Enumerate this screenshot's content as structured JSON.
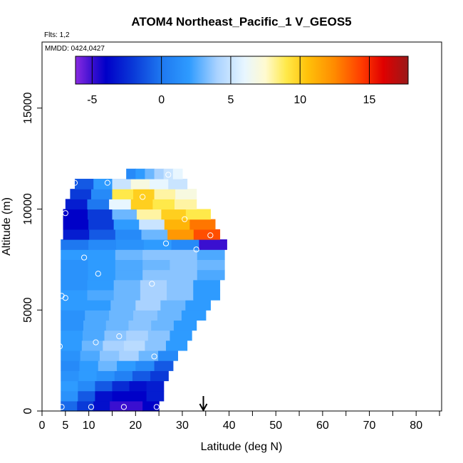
{
  "chart_data": {
    "type": "heatmap",
    "title": "ATOM4 Northeast_Pacific_1 V_GEOS5",
    "subtitle_flights": "Flts: 1,2",
    "subtitle_dates": "MMDD: 0424,0427",
    "xlabel": "Latitude (deg N)",
    "ylabel": "Altitude (m)",
    "xlim": [
      0,
      85
    ],
    "ylim": [
      0,
      17500
    ],
    "x_ticks": [
      0,
      5,
      10,
      20,
      30,
      40,
      50,
      60,
      70,
      80
    ],
    "x_tick_labels": [
      "0",
      "5",
      "10",
      "20",
      "30",
      "40",
      "50",
      "60",
      "70",
      "80"
    ],
    "y_ticks": [
      0,
      5000,
      10000,
      15000
    ],
    "y_tick_labels": [
      "0",
      "5000",
      "10000",
      "15000"
    ],
    "colorbar": {
      "range": [
        -6.2,
        17.8
      ],
      "ticks": [
        -5,
        0,
        5,
        10,
        15
      ],
      "tick_labels": [
        "-5",
        "0",
        "5",
        "10",
        "15"
      ],
      "stops": [
        {
          "v": -6.2,
          "c": "#8a2be2"
        },
        {
          "v": -5.0,
          "c": "#3a0fd0"
        },
        {
          "v": -4.0,
          "c": "#0000c8"
        },
        {
          "v": -2.0,
          "c": "#0a3ad8"
        },
        {
          "v": 0.0,
          "c": "#1e78f0"
        },
        {
          "v": 2.0,
          "c": "#2e9bff"
        },
        {
          "v": 4.0,
          "c": "#a9d2ff"
        },
        {
          "v": 6.0,
          "c": "#e8f6ff"
        },
        {
          "v": 7.5,
          "c": "#fffad0"
        },
        {
          "v": 9.0,
          "c": "#ffe94a"
        },
        {
          "v": 10.5,
          "c": "#ffc20a"
        },
        {
          "v": 12.5,
          "c": "#ff8a00"
        },
        {
          "v": 14.5,
          "c": "#ff3a00"
        },
        {
          "v": 16.0,
          "c": "#e00000"
        },
        {
          "v": 17.8,
          "c": "#9a1a1a"
        }
      ]
    },
    "marker": {
      "latitude": 34.5,
      "label": "arrow"
    },
    "cell_height_m": 500,
    "rows": [
      {
        "alt": 250,
        "x0": 4,
        "x1": 25,
        "v": [
          -0.5,
          -2,
          -3.5,
          -5,
          -5,
          -4
        ]
      },
      {
        "alt": 750,
        "x0": 4,
        "x1": 26,
        "v": [
          1.5,
          -1,
          -3.5,
          -4,
          -4,
          -3
        ]
      },
      {
        "alt": 1250,
        "x0": 4,
        "x1": 26,
        "v": [
          2,
          1,
          -1,
          -2.5,
          -3.5,
          -3
        ]
      },
      {
        "alt": 1750,
        "x0": 4,
        "x1": 27,
        "v": [
          1.5,
          2,
          1.5,
          0.5,
          -1,
          -2
        ]
      },
      {
        "alt": 2250,
        "x0": 4,
        "x1": 28,
        "v": [
          1,
          2,
          3,
          2,
          1,
          -1
        ]
      },
      {
        "alt": 2750,
        "x0": 4,
        "x1": 29,
        "v": [
          1.5,
          2.5,
          3.5,
          4,
          3,
          1
        ]
      },
      {
        "alt": 3250,
        "x0": 4,
        "x1": 31,
        "v": [
          2,
          3,
          4,
          4.5,
          3.5,
          2
        ]
      },
      {
        "alt": 3750,
        "x0": 4,
        "x1": 32,
        "v": [
          2,
          2.5,
          3.5,
          4,
          3.5,
          2
        ]
      },
      {
        "alt": 4250,
        "x0": 4,
        "x1": 33,
        "v": [
          1.5,
          2.5,
          3,
          3.5,
          3,
          2
        ]
      },
      {
        "alt": 4750,
        "x0": 4,
        "x1": 35,
        "v": [
          1.5,
          2.5,
          3,
          3.5,
          3,
          2
        ]
      },
      {
        "alt": 5250,
        "x0": 4,
        "x1": 36,
        "v": [
          2,
          2,
          3,
          4,
          3,
          2
        ]
      },
      {
        "alt": 5750,
        "x0": 4,
        "x1": 38,
        "v": [
          2,
          2.5,
          3,
          4,
          3.5,
          2
        ]
      },
      {
        "alt": 6250,
        "x0": 4,
        "x1": 38,
        "v": [
          1.5,
          2,
          3,
          4,
          3.5,
          2
        ]
      },
      {
        "alt": 6750,
        "x0": 4,
        "x1": 39,
        "v": [
          1.5,
          2,
          2.5,
          3.5,
          3.5,
          2.5
        ]
      },
      {
        "alt": 7250,
        "x0": 4,
        "x1": 39,
        "v": [
          1.5,
          2,
          2.5,
          3,
          3.5,
          3
        ]
      },
      {
        "alt": 7750,
        "x0": 4,
        "x1": 39,
        "v": [
          2,
          2,
          3,
          3.5,
          3.5,
          2.5
        ]
      },
      {
        "alt": 8250,
        "x0": 4,
        "x1": 39.5,
        "v": [
          0,
          1,
          1.5,
          2,
          1,
          -5
        ]
      },
      {
        "alt": 8750,
        "x0": 4.5,
        "x1": 38,
        "v": [
          -3,
          -1,
          1,
          3,
          12,
          14
        ]
      },
      {
        "alt": 9250,
        "x0": 4.5,
        "x1": 37,
        "v": [
          -4,
          -2,
          2,
          5,
          11,
          13
        ]
      },
      {
        "alt": 9750,
        "x0": 4.5,
        "x1": 36,
        "v": [
          -4,
          -2,
          3,
          8,
          10,
          9
        ]
      },
      {
        "alt": 10250,
        "x0": 5,
        "x1": 33,
        "v": [
          -3,
          0,
          6,
          10,
          9,
          8
        ]
      },
      {
        "alt": 10750,
        "x0": 6,
        "x1": 33,
        "v": [
          -2,
          1,
          9,
          10,
          8,
          7
        ]
      },
      {
        "alt": 11250,
        "x0": 7,
        "x1": 31,
        "v": [
          -1,
          2,
          5,
          7,
          6,
          5
        ]
      },
      {
        "alt": 11750,
        "x0": 18,
        "x1": 30,
        "v": [
          1,
          2,
          3,
          4,
          5,
          6
        ]
      }
    ],
    "points": [
      [
        4.2,
        200
      ],
      [
        10.5,
        200
      ],
      [
        17.5,
        200
      ],
      [
        24.5,
        200
      ],
      [
        3.8,
        3200
      ],
      [
        11.5,
        3400
      ],
      [
        16.5,
        3700
      ],
      [
        24,
        2700
      ],
      [
        4.2,
        5700
      ],
      [
        5,
        5600
      ],
      [
        12,
        6800
      ],
      [
        23.5,
        6300
      ],
      [
        39,
        5900
      ],
      [
        9,
        7600
      ],
      [
        26.5,
        8300
      ],
      [
        33,
        8000
      ],
      [
        5,
        9800
      ],
      [
        30.5,
        9500
      ],
      [
        36,
        8700
      ],
      [
        7,
        11300
      ],
      [
        14,
        11300
      ],
      [
        21.5,
        10600
      ],
      [
        27,
        11700
      ]
    ]
  }
}
